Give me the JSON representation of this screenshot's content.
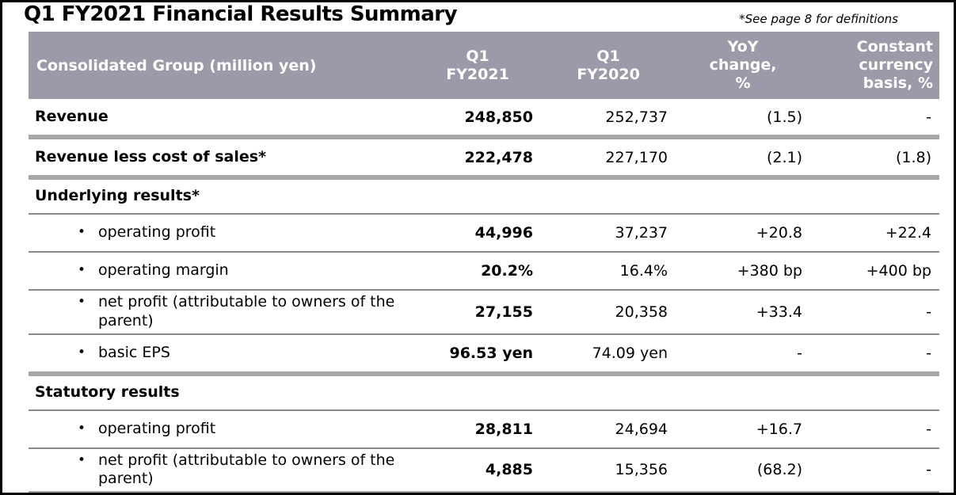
{
  "title": "Q1 FY2021 Financial Results Summary",
  "note": "*See page 8 for definitions",
  "colors": {
    "header_bg": "#9a9aa8",
    "header_text": "#ffffff",
    "divider_thick": "#a6a6a6",
    "divider_thin": "#8a8a8a",
    "border": "#000000"
  },
  "table": {
    "header": {
      "label": "Consolidated Group (million yen)",
      "columns": [
        "Q1\nFY2021",
        "Q1\nFY2020",
        "YoY\nchange,\n%",
        "Constant\ncurrency\nbasis, %"
      ]
    },
    "rows": [
      {
        "type": "item",
        "label": "Revenue",
        "values": [
          "248,850",
          "252,737",
          "(1.5)",
          "-"
        ],
        "divider_after": "thick"
      },
      {
        "type": "item",
        "label": "Revenue less cost of sales*",
        "values": [
          "222,478",
          "227,170",
          "(2.1)",
          "(1.8)"
        ],
        "divider_after": "thick"
      },
      {
        "type": "section",
        "label": "Underlying results*",
        "values": [
          "",
          "",
          "",
          ""
        ],
        "divider_after": "thin"
      },
      {
        "type": "bullet",
        "label": "operating profit",
        "values": [
          "44,996",
          "37,237",
          "+20.8",
          "+22.4"
        ],
        "divider_after": "thin"
      },
      {
        "type": "bullet",
        "label": "operating margin",
        "values": [
          "20.2%",
          "16.4%",
          "+380 bp",
          "+400 bp"
        ],
        "divider_after": "thin"
      },
      {
        "type": "bullet",
        "label": "net profit (attributable to owners of the parent)",
        "values": [
          "27,155",
          "20,358",
          "+33.4",
          "-"
        ],
        "divider_after": "thin"
      },
      {
        "type": "bullet",
        "label": "basic EPS",
        "values": [
          "96.53 yen",
          "74.09 yen",
          "-",
          "-"
        ],
        "divider_after": "thick"
      },
      {
        "type": "section",
        "label": "Statutory results",
        "values": [
          "",
          "",
          "",
          ""
        ],
        "divider_after": "thin"
      },
      {
        "type": "bullet",
        "label": "operating profit",
        "values": [
          "28,811",
          "24,694",
          "+16.7",
          "-"
        ],
        "divider_after": "thin"
      },
      {
        "type": "bullet",
        "label": "net profit (attributable to owners of the parent)",
        "values": [
          "4,885",
          "15,356",
          "(68.2)",
          "-"
        ],
        "divider_after": "thick"
      }
    ]
  }
}
